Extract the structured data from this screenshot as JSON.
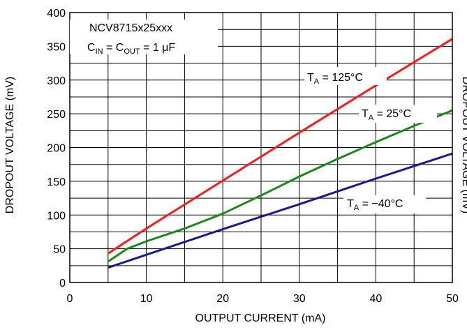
{
  "chart_data": {
    "type": "line",
    "title": "",
    "xlabel": "OUTPUT CURRENT (mA)",
    "ylabel": "DROPOUT VOLTAGE (mV)",
    "right_ylabel_partial": "DROPOUT VOLTAGE (mV)",
    "xlim": [
      0,
      50
    ],
    "ylim": [
      0,
      400
    ],
    "xticks": [
      0,
      10,
      20,
      30,
      40,
      50
    ],
    "yticks": [
      0,
      50,
      100,
      150,
      200,
      250,
      300,
      350,
      400
    ],
    "grid": true,
    "conditions": {
      "device": "NCV8715x25xxx",
      "caps_prefix": "C",
      "caps_sub1": "IN",
      "caps_mid": " = C",
      "caps_sub2": "OUT",
      "caps_suffix": " = 1 μF"
    },
    "series": [
      {
        "name": "T_A = 125°C",
        "label_main": "T",
        "label_sub": "A",
        "label_rest": " = 125°C",
        "color": "#ff1a1a",
        "x": [
          5,
          10,
          20,
          30,
          40,
          50
        ],
        "values": [
          43,
          80,
          151,
          222,
          292,
          361
        ]
      },
      {
        "name": "T_A = 25°C",
        "label_main": "T",
        "label_sub": "A",
        "label_rest": " = 25°C",
        "color": "#1a8a1a",
        "x": [
          5,
          7.5,
          10,
          15,
          20,
          25,
          30,
          35,
          40,
          45,
          50
        ],
        "values": [
          31,
          50,
          61,
          80,
          102,
          129,
          157,
          183,
          208,
          232,
          255
        ]
      },
      {
        "name": "T_A = −40°C",
        "label_main": "T",
        "label_sub": "A",
        "label_rest": " = −40°C",
        "color": "#1a1a8c",
        "x": [
          5,
          10,
          20,
          30,
          40,
          50
        ],
        "values": [
          22,
          41,
          79,
          116,
          154,
          191
        ]
      }
    ]
  }
}
